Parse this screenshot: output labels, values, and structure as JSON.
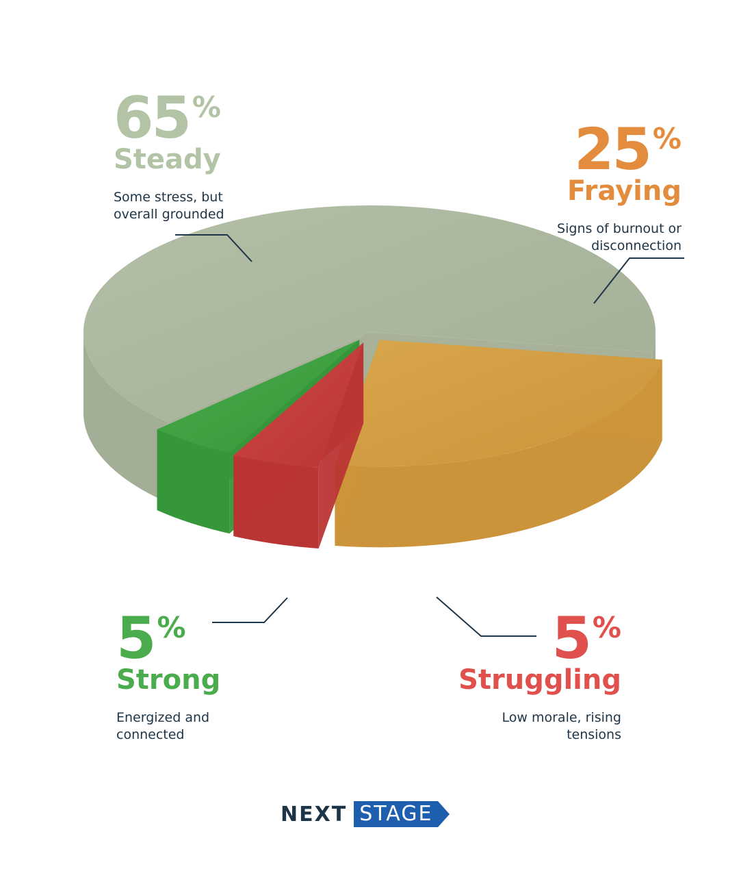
{
  "chart_data": {
    "type": "pie",
    "series": [
      {
        "name": "Steady",
        "value": 65,
        "description": "Some stress, but overall grounded",
        "color": "#b3bfa7",
        "side_color": "#a3ae96"
      },
      {
        "name": "Fraying",
        "value": 25,
        "description": "Signs of burnout or disconnection",
        "color": "#d8a64b",
        "side_color": "#cc943a"
      },
      {
        "name": "Struggling",
        "value": 5,
        "description": "Low morale, rising tensions",
        "color": "#cd4744",
        "side_color": "#b93534"
      },
      {
        "name": "Strong",
        "value": 5,
        "description": "Energized and connected",
        "color": "#4aac4c",
        "side_color": "#36963a"
      }
    ],
    "legend": "labels around pie",
    "three_d": true,
    "exploded": true
  },
  "labels": {
    "steady": {
      "pct": "65",
      "sym": "%",
      "name": "Steady",
      "desc": "Some stress, but overall grounded",
      "color": "#b3c3a5"
    },
    "fraying": {
      "pct": "25",
      "sym": "%",
      "name": "Fraying",
      "desc": "Signs of burnout or disconnection",
      "color": "#e38c3e"
    },
    "strong": {
      "pct": "5",
      "sym": "%",
      "name": "Strong",
      "desc": "Energized and connected",
      "color": "#4aac4c"
    },
    "struggling": {
      "pct": "5",
      "sym": "%",
      "name": "Struggling",
      "desc": "Low morale, rising tensions",
      "color": "#e0504c"
    }
  },
  "logo": {
    "word1": "NEXT",
    "word2": "STAGE",
    "color_dark": "#1e3447",
    "color_blue": "#1d5fae"
  },
  "colors": {
    "leader_line": "#1e3447"
  }
}
